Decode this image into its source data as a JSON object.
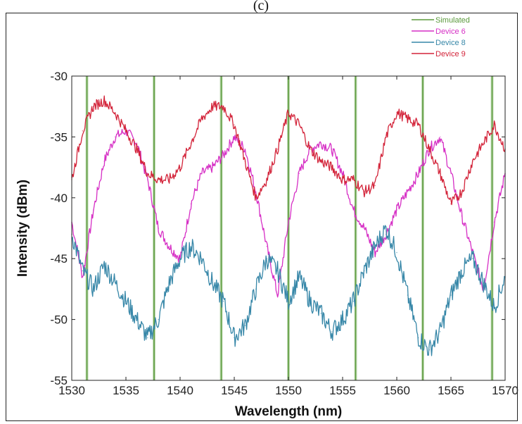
{
  "panel_label": "(c)",
  "chart_data": {
    "type": "line",
    "title": "",
    "xlabel": "Wavelength (nm)",
    "ylabel": "Intensity (dBm)",
    "xlim": [
      1530,
      1570
    ],
    "ylim": [
      -55,
      -30
    ],
    "xticks": [
      1530,
      1535,
      1540,
      1545,
      1550,
      1555,
      1560,
      1565,
      1570
    ],
    "yticks": [
      -30,
      -35,
      -40,
      -45,
      -50,
      -55
    ],
    "xtick_labels": [
      "1530",
      "1535",
      "1540",
      "1545",
      "1550",
      "1555",
      "1560",
      "1565",
      "1570"
    ],
    "ytick_labels": [
      "-30",
      "-35",
      "-40",
      "-45",
      "-50",
      "-55"
    ],
    "grid": false,
    "legend_position": "top-right",
    "series": [
      {
        "name": "Simulated",
        "color": "#5b9a3c",
        "style": "vertical-lines",
        "x": [
          1531.4,
          1537.6,
          1543.8,
          1550.0,
          1556.2,
          1562.4,
          1568.8
        ],
        "values": [
          1531.4,
          1537.6,
          1543.8,
          1550.0,
          1556.2,
          1562.4,
          1568.8
        ]
      },
      {
        "name": "Device 6",
        "color": "#d62fc5",
        "x": [
          1530,
          1531,
          1532,
          1533,
          1534,
          1535,
          1536,
          1537,
          1538,
          1539,
          1540,
          1541,
          1542,
          1543,
          1544,
          1545,
          1546,
          1547,
          1548,
          1549,
          1550,
          1551,
          1552,
          1553,
          1554,
          1555,
          1556,
          1557,
          1558,
          1559,
          1560,
          1561,
          1562,
          1563,
          1564,
          1565,
          1566,
          1567,
          1568,
          1569,
          1570
        ],
        "values": [
          -42,
          -46.5,
          -41,
          -37,
          -35,
          -34.5,
          -35.5,
          -38.5,
          -42.5,
          -44,
          -45,
          -40.5,
          -38,
          -37.5,
          -36.5,
          -35,
          -36,
          -39.5,
          -44,
          -48,
          -42,
          -38,
          -36,
          -35.5,
          -36,
          -38,
          -41,
          -42.5,
          -44.5,
          -43,
          -41,
          -39.5,
          -38,
          -36,
          -35,
          -38,
          -41.5,
          -44.5,
          -47.5,
          -42,
          -38
        ]
      },
      {
        "name": "Device 8",
        "color": "#3787a8",
        "x": [
          1530,
          1531,
          1532,
          1533,
          1534,
          1535,
          1536,
          1537,
          1538,
          1539,
          1540,
          1541,
          1542,
          1543,
          1544,
          1545,
          1546,
          1547,
          1548,
          1549,
          1550,
          1551,
          1552,
          1553,
          1554,
          1555,
          1556,
          1557,
          1558,
          1559,
          1560,
          1561,
          1562,
          1563,
          1564,
          1565,
          1566,
          1567,
          1568,
          1569,
          1570
        ],
        "values": [
          -43,
          -46,
          -47.5,
          -45.5,
          -47,
          -48.5,
          -50,
          -51.5,
          -50,
          -47,
          -45,
          -44,
          -45,
          -47,
          -48.5,
          -51.5,
          -50.5,
          -47.5,
          -45,
          -46,
          -48.5,
          -46.5,
          -48.5,
          -49.5,
          -51,
          -50,
          -48.5,
          -46,
          -44,
          -42.5,
          -44.5,
          -48,
          -51.5,
          -52.5,
          -51,
          -48,
          -46,
          -45,
          -47,
          -49,
          -46.5
        ]
      },
      {
        "name": "Device 9",
        "color": "#d3243a",
        "x": [
          1530,
          1531,
          1532,
          1533,
          1534,
          1535,
          1536,
          1537,
          1538,
          1539,
          1540,
          1541,
          1542,
          1543,
          1544,
          1545,
          1546,
          1547,
          1548,
          1549,
          1550,
          1551,
          1552,
          1553,
          1554,
          1555,
          1556,
          1557,
          1558,
          1559,
          1560,
          1561,
          1562,
          1563,
          1564,
          1565,
          1566,
          1567,
          1568,
          1569,
          1570
        ],
        "values": [
          -38.5,
          -34.5,
          -32.5,
          -32,
          -33,
          -34.5,
          -36,
          -38,
          -38.5,
          -38.5,
          -37.5,
          -35.5,
          -33.5,
          -32.5,
          -32.5,
          -34,
          -37,
          -40,
          -38.5,
          -36,
          -33,
          -34,
          -36,
          -37,
          -37.5,
          -38.5,
          -38.5,
          -39.5,
          -39,
          -35,
          -33,
          -33.5,
          -34,
          -36,
          -38,
          -40.5,
          -39.5,
          -37,
          -35.5,
          -34,
          -36
        ]
      }
    ]
  }
}
